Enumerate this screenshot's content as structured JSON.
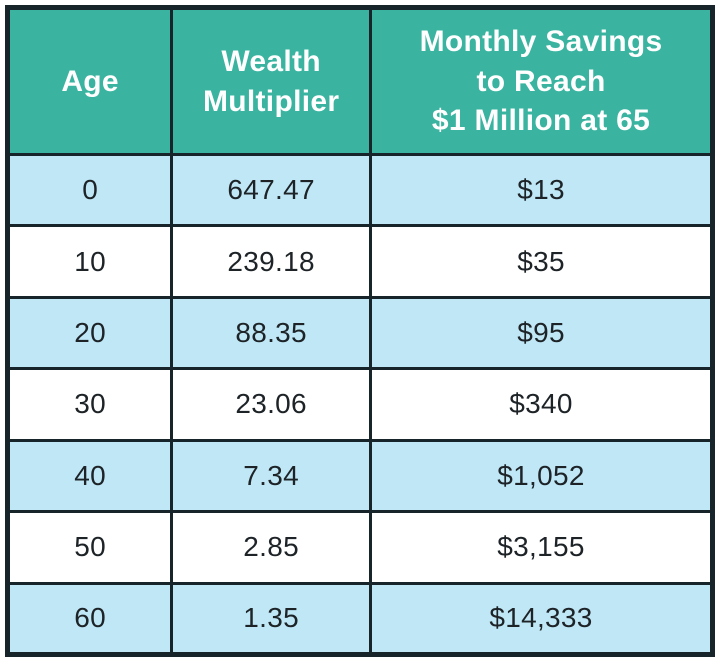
{
  "title": "Wealth multiplier savings table",
  "colors": {
    "header_bg": "#3ab4a0",
    "row_alt_bg": "#bfe7f6",
    "row_bg": "#ffffff",
    "border": "#17242a",
    "header_text": "#ffffff",
    "cell_text": "#1d2327"
  },
  "header": {
    "col1": "Age",
    "col2": "Wealth\nMultiplier",
    "col3": "Monthly Savings\nto Reach\n$1 Million at 65"
  },
  "chart_data": {
    "type": "table",
    "columns": [
      "Age",
      "Wealth Multiplier",
      "Monthly Savings to Reach $1 Million at 65"
    ],
    "rows": [
      [
        "0",
        "647.47",
        "$13"
      ],
      [
        "10",
        "239.18",
        "$35"
      ],
      [
        "20",
        "88.35",
        "$95"
      ],
      [
        "30",
        "23.06",
        "$340"
      ],
      [
        "40",
        "7.34",
        "$1,052"
      ],
      [
        "50",
        "2.85",
        "$3,155"
      ],
      [
        "60",
        "1.35",
        "$14,333"
      ]
    ],
    "numeric": {
      "age": [
        0,
        10,
        20,
        30,
        40,
        50,
        60
      ],
      "wealth_multiplier": [
        647.47,
        239.18,
        88.35,
        23.06,
        7.34,
        2.85,
        1.35
      ],
      "monthly_savings_usd": [
        13,
        35,
        95,
        340,
        1052,
        3155,
        14333
      ]
    },
    "row_striping": "first row shaded light blue, alternating with white"
  }
}
